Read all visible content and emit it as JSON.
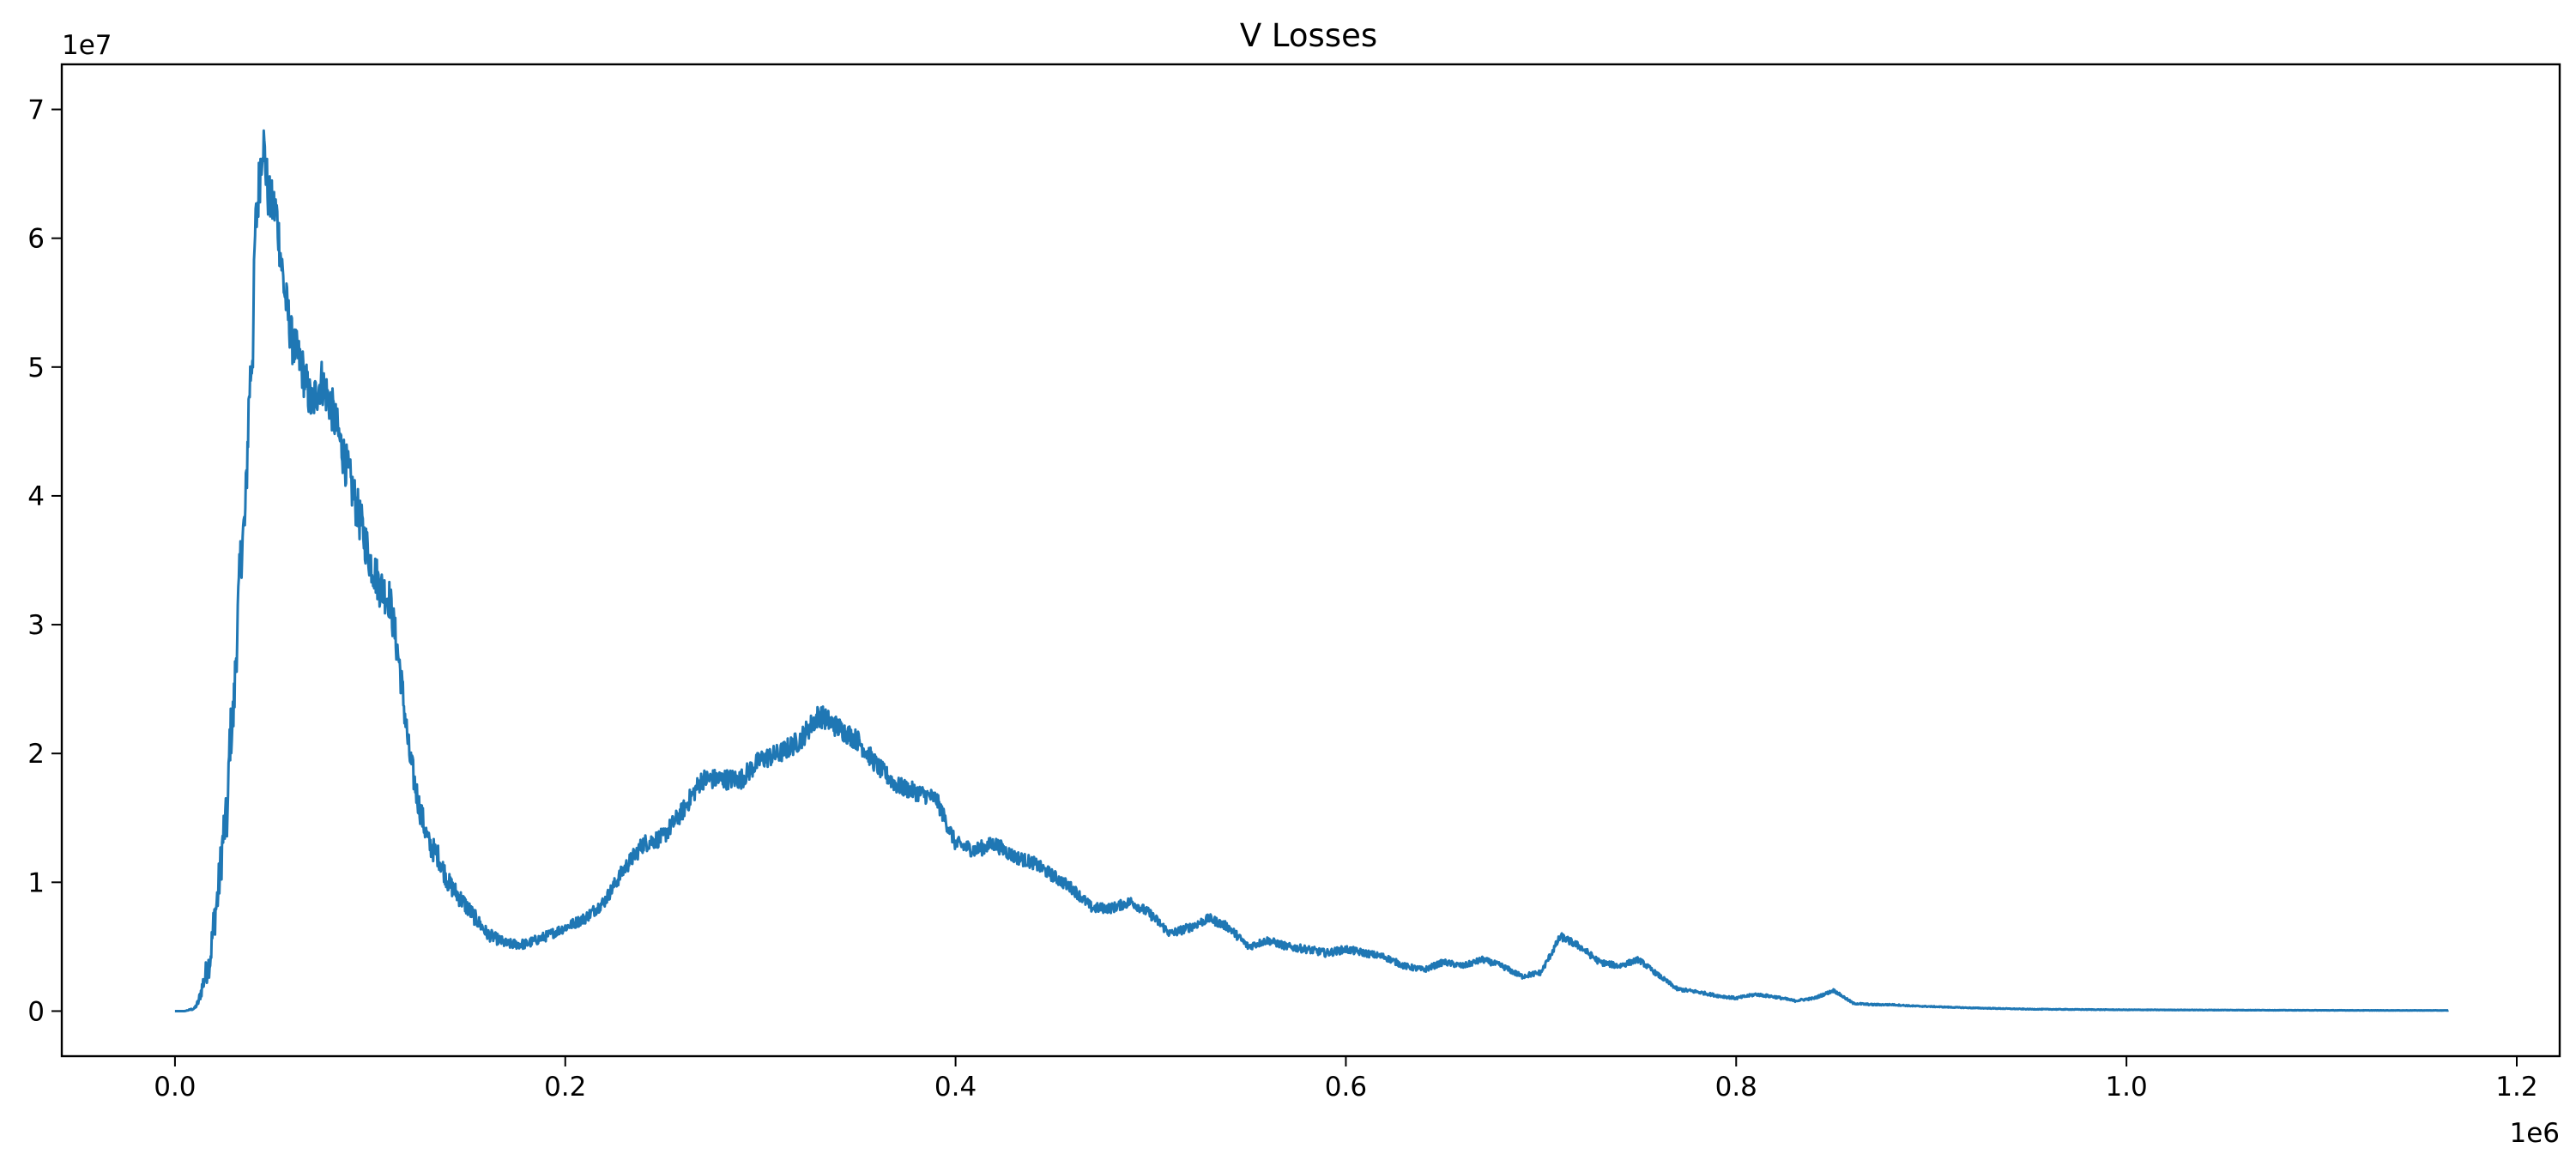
{
  "chart_data": {
    "type": "line",
    "title": "V Losses",
    "xlabel": "",
    "ylabel": "",
    "x_offset_text": "1e6",
    "y_offset_text": "1e7",
    "xlim": [
      -58000,
      1222000
    ],
    "ylim": [
      -3500000,
      73500000
    ],
    "x_ticks": [
      0,
      200000,
      400000,
      600000,
      800000,
      1000000,
      1200000
    ],
    "x_tick_labels": [
      "0.0",
      "0.2",
      "0.4",
      "0.6",
      "0.8",
      "1.0",
      "1.2"
    ],
    "y_ticks": [
      0,
      10000000,
      20000000,
      30000000,
      40000000,
      50000000,
      60000000,
      70000000
    ],
    "y_tick_labels": [
      "0",
      "1",
      "2",
      "3",
      "4",
      "5",
      "6",
      "7"
    ],
    "grid": false,
    "legend": "none",
    "line_color": "#1f77b4",
    "series": [
      {
        "name": "",
        "x": [
          0,
          5000,
          10000,
          12000,
          15000,
          18000,
          20000,
          22000,
          25000,
          27000,
          28000,
          30000,
          32000,
          34000,
          36000,
          38000,
          40000,
          41000,
          43000,
          45000,
          48000,
          52000,
          56000,
          60000,
          65000,
          70000,
          75000,
          80000,
          85000,
          90000,
          95000,
          100000,
          105000,
          110000,
          115000,
          120000,
          125000,
          130000,
          135000,
          140000,
          150000,
          160000,
          170000,
          180000,
          190000,
          200000,
          210000,
          220000,
          230000,
          240000,
          250000,
          260000,
          270000,
          280000,
          290000,
          300000,
          310000,
          320000,
          330000,
          340000,
          350000,
          360000,
          370000,
          380000,
          390000,
          400000,
          410000,
          420000,
          430000,
          440000,
          450000,
          460000,
          470000,
          480000,
          490000,
          500000,
          510000,
          520000,
          530000,
          540000,
          550000,
          560000,
          570000,
          580000,
          590000,
          600000,
          610000,
          620000,
          630000,
          640000,
          650000,
          660000,
          670000,
          680000,
          690000,
          700000,
          710000,
          720000,
          730000,
          740000,
          750000,
          760000,
          770000,
          780000,
          790000,
          800000,
          810000,
          820000,
          830000,
          840000,
          850000,
          860000,
          870000,
          880000,
          890000,
          900000,
          920000,
          950000,
          1000000,
          1050000,
          1100000,
          1165000
        ],
        "y": [
          0,
          0,
          200000,
          700000,
          2500000,
          4000000,
          7000000,
          9000000,
          14000000,
          15000000,
          21000000,
          23000000,
          30000000,
          36000000,
          38000000,
          48000000,
          52000000,
          60000000,
          64000000,
          68000000,
          63000000,
          62000000,
          56000000,
          52000000,
          50000000,
          47000000,
          49000000,
          47000000,
          44000000,
          41000000,
          38000000,
          35000000,
          33000000,
          32000000,
          27000000,
          20000000,
          16000000,
          13000000,
          12000000,
          10000000,
          8000000,
          6000000,
          5200000,
          5200000,
          5800000,
          6500000,
          7200000,
          8500000,
          11000000,
          13000000,
          13500000,
          15500000,
          18000000,
          18000000,
          18000000,
          19500000,
          20000000,
          21000000,
          23000000,
          22000000,
          21000000,
          19000000,
          17500000,
          17000000,
          16500000,
          13000000,
          12500000,
          13000000,
          12000000,
          11500000,
          10500000,
          9500000,
          8000000,
          8000000,
          8500000,
          7500000,
          6000000,
          6500000,
          7200000,
          6500000,
          5000000,
          5500000,
          5000000,
          4800000,
          4500000,
          4800000,
          4500000,
          4200000,
          3500000,
          3200000,
          3800000,
          3500000,
          4000000,
          3500000,
          2700000,
          3000000,
          5800000,
          5000000,
          3800000,
          3500000,
          4000000,
          2800000,
          1700000,
          1500000,
          1200000,
          1000000,
          1300000,
          1100000,
          800000,
          1000000,
          1600000,
          600000,
          500000,
          500000,
          400000,
          350000,
          250000,
          150000,
          100000,
          80000,
          60000,
          50000
        ],
        "noise_amplitude": [
          0,
          0,
          100000,
          300000,
          900000,
          1200000,
          1600000,
          1800000,
          2000000,
          2000000,
          2200000,
          2200000,
          2400000,
          2500000,
          2500000,
          2500000,
          2500000,
          2500000,
          2400000,
          2200000,
          2000000,
          2000000,
          1900000,
          1800000,
          1800000,
          1800000,
          1800000,
          1800000,
          1800000,
          1800000,
          1800000,
          1700000,
          1700000,
          1600000,
          1500000,
          1300000,
          1100000,
          1000000,
          900000,
          800000,
          700000,
          500000,
          400000,
          400000,
          400000,
          400000,
          450000,
          500000,
          600000,
          700000,
          700000,
          750000,
          800000,
          800000,
          800000,
          800000,
          800000,
          850000,
          900000,
          850000,
          800000,
          750000,
          700000,
          700000,
          650000,
          600000,
          600000,
          600000,
          550000,
          500000,
          500000,
          450000,
          400000,
          400000,
          400000,
          400000,
          350000,
          350000,
          350000,
          350000,
          300000,
          300000,
          300000,
          300000,
          300000,
          300000,
          280000,
          260000,
          240000,
          220000,
          240000,
          220000,
          240000,
          220000,
          200000,
          200000,
          300000,
          280000,
          240000,
          220000,
          220000,
          180000,
          140000,
          120000,
          110000,
          100000,
          110000,
          100000,
          80000,
          90000,
          120000,
          70000,
          60000,
          50000,
          40000,
          35000,
          30000,
          25000,
          20000,
          15000,
          12000,
          10000
        ]
      }
    ]
  }
}
